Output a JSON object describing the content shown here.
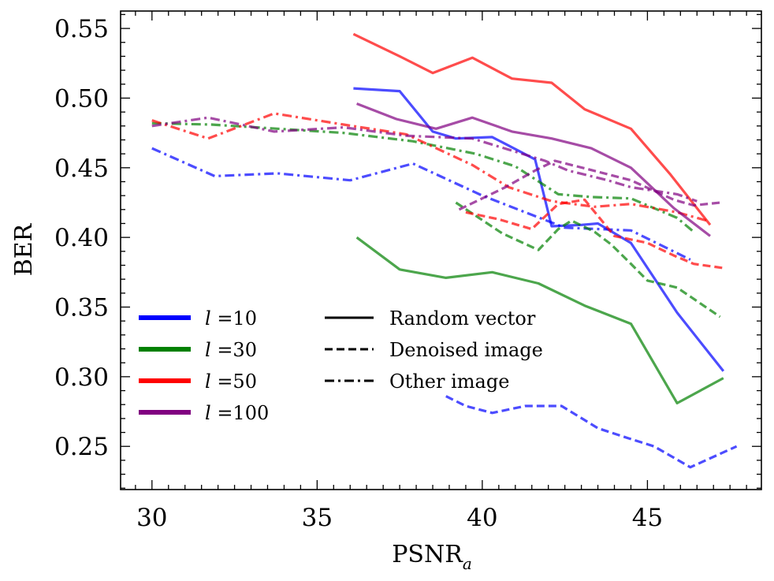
{
  "chart_data": {
    "type": "line",
    "xlabel": "PSNR",
    "xlabel_sub": "a",
    "ylabel": "BER",
    "xlim": [
      29.05,
      48.45
    ],
    "ylim": [
      0.219,
      0.5625
    ],
    "xticks": [
      30,
      35,
      40,
      45
    ],
    "yticks": [
      0.25,
      0.3,
      0.35,
      0.4,
      0.45,
      0.5,
      0.55
    ],
    "xtick_labels": [
      "30",
      "35",
      "40",
      "45"
    ],
    "ytick_labels": [
      "0.25",
      "0.30",
      "0.35",
      "0.40",
      "0.45",
      "0.50",
      "0.55"
    ],
    "grid": false,
    "legend_color": {
      "placement": "lower-left",
      "entries": [
        {
          "symbol": "l",
          "label": " =10",
          "color": "#0000ff"
        },
        {
          "symbol": "l",
          "label": " =30",
          "color": "#008000"
        },
        {
          "symbol": "l",
          "label": " =50",
          "color": "#ff0000"
        },
        {
          "symbol": "l",
          "label": " =100",
          "color": "#800080"
        }
      ]
    },
    "legend_style": {
      "placement": "lower-center",
      "entries": [
        {
          "label": "Random vector",
          "dash": "solid"
        },
        {
          "label": "Denoised image",
          "dash": "dashed"
        },
        {
          "label": "Other image",
          "dash": "dashdot"
        }
      ]
    },
    "series": [
      {
        "l": "10",
        "method": "Random vector",
        "color": "#0000ff",
        "dash": "solid",
        "x": [
          36.1,
          37.5,
          38.5,
          39.2,
          40.3,
          41.6,
          42.1,
          43.0,
          43.5,
          44.5,
          45.9,
          47.3
        ],
        "y": [
          0.507,
          0.505,
          0.476,
          0.471,
          0.472,
          0.456,
          0.408,
          0.409,
          0.41,
          0.396,
          0.346,
          0.304
        ]
      },
      {
        "l": "10",
        "method": "Denoised image",
        "color": "#0000ff",
        "dash": "dashed",
        "x": [
          38.9,
          39.5,
          40.3,
          41.3,
          42.4,
          43.5,
          44.4,
          45.2,
          46.3,
          47.7
        ],
        "y": [
          0.286,
          0.279,
          0.274,
          0.279,
          0.279,
          0.263,
          0.256,
          0.25,
          0.235,
          0.25
        ]
      },
      {
        "l": "10",
        "method": "Other image",
        "color": "#0000ff",
        "dash": "dashdot",
        "x": [
          30.0,
          31.9,
          33.8,
          36.0,
          37.9,
          40.0,
          42.5,
          44.5,
          46.3
        ],
        "y": [
          0.464,
          0.444,
          0.446,
          0.441,
          0.453,
          0.43,
          0.407,
          0.405,
          0.384
        ]
      },
      {
        "l": "30",
        "method": "Random vector",
        "color": "#008000",
        "dash": "solid",
        "x": [
          36.2,
          37.5,
          38.9,
          40.3,
          41.7,
          43.1,
          44.5,
          45.9,
          47.3
        ],
        "y": [
          0.4,
          0.377,
          0.371,
          0.375,
          0.367,
          0.351,
          0.338,
          0.281,
          0.299
        ]
      },
      {
        "l": "30",
        "method": "Denoised image",
        "color": "#008000",
        "dash": "dashed",
        "x": [
          39.2,
          39.9,
          40.6,
          41.7,
          42.3,
          42.7,
          43.4,
          43.9,
          44.5,
          45.0,
          45.9,
          47.2
        ],
        "y": [
          0.425,
          0.414,
          0.403,
          0.391,
          0.406,
          0.412,
          0.404,
          0.395,
          0.381,
          0.369,
          0.364,
          0.343
        ]
      },
      {
        "l": "30",
        "method": "Other image",
        "color": "#008000",
        "dash": "dashdot",
        "x": [
          30.0,
          31.8,
          33.8,
          35.8,
          37.9,
          39.8,
          41.0,
          42.3,
          43.3,
          44.5,
          45.9,
          46.4
        ],
        "y": [
          0.482,
          0.481,
          0.478,
          0.475,
          0.469,
          0.46,
          0.451,
          0.431,
          0.429,
          0.428,
          0.414,
          0.404
        ]
      },
      {
        "l": "50",
        "method": "Random vector",
        "color": "#ff0000",
        "dash": "solid",
        "x": [
          36.1,
          37.5,
          38.5,
          39.7,
          40.9,
          42.1,
          43.1,
          44.5,
          45.7,
          46.9
        ],
        "y": [
          0.546,
          0.53,
          0.518,
          0.529,
          0.514,
          0.511,
          0.492,
          0.478,
          0.445,
          0.409
        ]
      },
      {
        "l": "50",
        "method": "Denoised image",
        "color": "#ff0000",
        "dash": "dashed",
        "x": [
          39.5,
          40.5,
          41.5,
          42.3,
          43.1,
          44.0,
          45.0,
          45.8,
          46.4,
          47.3
        ],
        "y": [
          0.418,
          0.413,
          0.406,
          0.424,
          0.427,
          0.401,
          0.396,
          0.387,
          0.381,
          0.378
        ]
      },
      {
        "l": "50",
        "method": "Other image",
        "color": "#ff0000",
        "dash": "dashdot",
        "x": [
          30.0,
          31.7,
          33.7,
          35.8,
          37.7,
          39.7,
          40.8,
          42.1,
          43.4,
          44.5,
          45.9,
          46.8
        ],
        "y": [
          0.484,
          0.471,
          0.489,
          0.481,
          0.474,
          0.452,
          0.436,
          0.426,
          0.422,
          0.424,
          0.418,
          0.412
        ]
      },
      {
        "l": "100",
        "method": "Random vector",
        "color": "#800080",
        "dash": "solid",
        "x": [
          36.2,
          37.4,
          38.6,
          39.7,
          40.9,
          42.1,
          43.3,
          44.5,
          45.8,
          46.9
        ],
        "y": [
          0.496,
          0.485,
          0.478,
          0.486,
          0.476,
          0.471,
          0.464,
          0.45,
          0.421,
          0.401
        ]
      },
      {
        "l": "100",
        "method": "Denoised image",
        "color": "#800080",
        "dash": "dashed",
        "x": [
          39.3,
          40.7,
          41.6,
          42.2,
          43.2,
          44.5,
          45.8,
          46.4,
          47.2
        ],
        "y": [
          0.42,
          0.436,
          0.448,
          0.455,
          0.449,
          0.441,
          0.427,
          0.423,
          0.425
        ]
      },
      {
        "l": "100",
        "method": "Other image",
        "color": "#800080",
        "dash": "dashdot",
        "x": [
          30.0,
          31.7,
          33.7,
          35.8,
          37.7,
          39.7,
          40.8,
          41.9,
          42.6,
          43.8,
          44.5,
          45.9,
          46.5
        ],
        "y": [
          0.48,
          0.486,
          0.476,
          0.479,
          0.473,
          0.471,
          0.463,
          0.455,
          0.448,
          0.441,
          0.436,
          0.431,
          0.426
        ]
      }
    ]
  }
}
